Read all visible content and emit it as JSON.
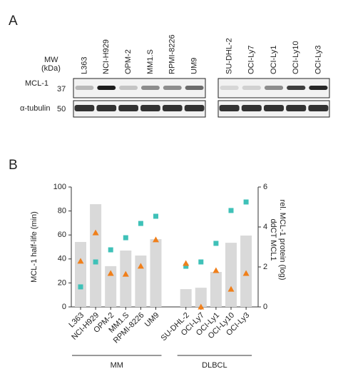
{
  "panel_a": {
    "label": "A",
    "mw_label": [
      "MW",
      "(kDa)"
    ],
    "rows": [
      {
        "name": "MCL-1",
        "mw": "37"
      },
      {
        "name": "α-tubulin",
        "mw": "50"
      }
    ],
    "lanes_left": [
      "L363",
      "NCI-H929",
      "OPM-2",
      "MM1.S",
      "RPMI-8226",
      "UM9"
    ],
    "lanes_right": [
      "SU-DHL-2",
      "OCI-Ly7",
      "OCI-Ly1",
      "OCI-Ly10",
      "OCI-Ly3"
    ]
  },
  "chart_data": {
    "type": "combo",
    "label": "B",
    "categories": [
      "L363",
      "NCI-H929",
      "OPM-2",
      "MM1.S",
      "RPMI-8226",
      "UM9",
      null,
      "SU-DHL-2",
      "OCI-Ly7",
      "OCI-Ly1",
      "OCI-Ly10",
      "OCI-Ly3"
    ],
    "y_label": "MCL-1 half-life (min)",
    "y2_labels": [
      "ddCT MCL1",
      "rel. MCL-1 protein (log)"
    ],
    "ylim": [
      0,
      100
    ],
    "yticks": [
      0,
      20,
      40,
      60,
      80,
      100
    ],
    "y2lim": [
      0,
      6
    ],
    "y2ticks": [
      0,
      2,
      4,
      6
    ],
    "series": [
      {
        "type": "bar",
        "axis": "y2",
        "color": "#d9d9d9",
        "values": [
          3.25,
          5.14,
          2.04,
          2.82,
          2.57,
          3.39,
          null,
          0.89,
          0.96,
          1.75,
          3.21,
          3.57
        ]
      },
      {
        "type": "scatter",
        "marker": "square",
        "axis": "y",
        "color": "#3fc1b8",
        "values": [
          16.7,
          37.5,
          47.6,
          57.7,
          69.6,
          75.6,
          null,
          33.9,
          37.5,
          53.0,
          80.4,
          87.5
        ]
      },
      {
        "type": "scatter",
        "marker": "triangle",
        "axis": "y2",
        "color": "#f07f1a",
        "values": [
          2.29,
          3.71,
          1.68,
          1.64,
          2.04,
          3.36,
          null,
          2.18,
          0,
          1.82,
          0.89,
          1.68
        ]
      }
    ],
    "groups": [
      {
        "name": "MM",
        "from": 0,
        "to": 5
      },
      {
        "name": "DLBCL",
        "from": 7,
        "to": 11
      }
    ]
  }
}
